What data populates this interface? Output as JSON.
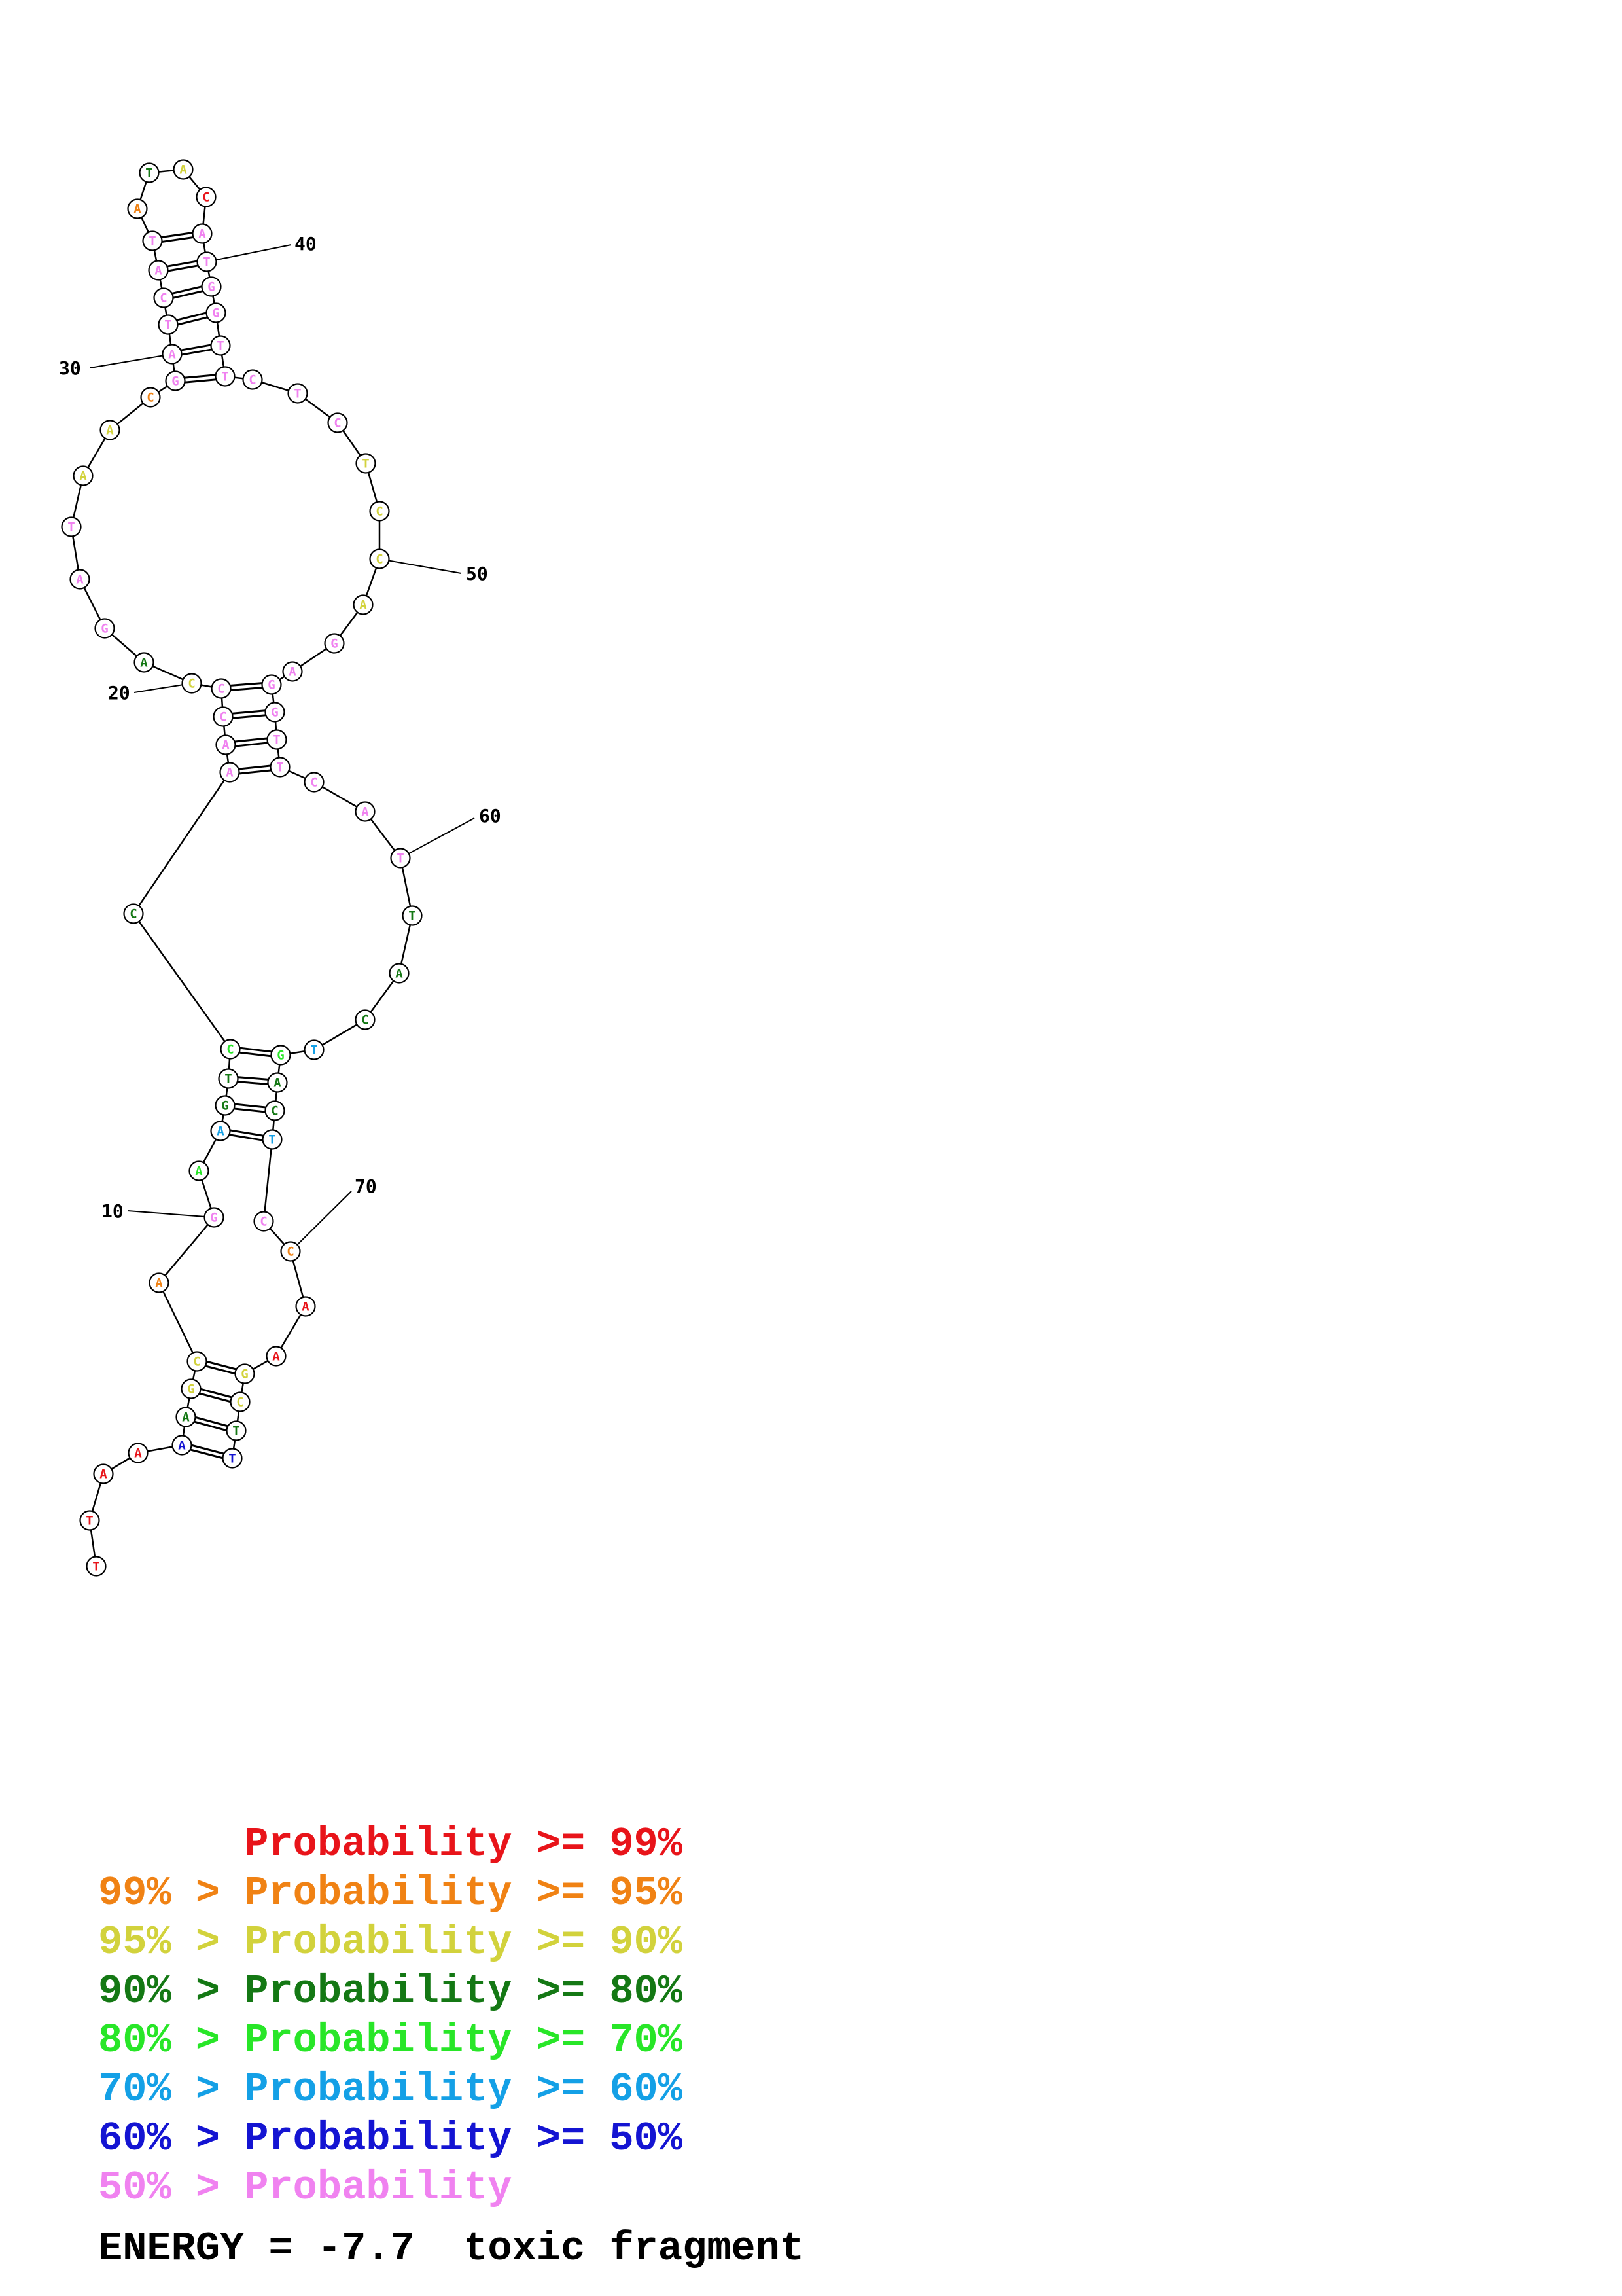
{
  "colors": {
    "c1": "#e8141a",
    "c2": "#f08214",
    "c3": "#d2d23c",
    "c4": "#147814",
    "c5": "#28e628",
    "c6": "#14a0e6",
    "c7": "#1414d2",
    "c8": "#f082f0",
    "black": "#000000",
    "node_fill": "#ffffff"
  },
  "diagram": {
    "sequence": [
      {
        "n": 1,
        "base": "T",
        "color": "c1"
      },
      {
        "n": 2,
        "base": "T",
        "color": "c1"
      },
      {
        "n": 3,
        "base": "A",
        "color": "c1"
      },
      {
        "n": 4,
        "base": "A",
        "color": "c1"
      },
      {
        "n": 5,
        "base": "A",
        "color": "c7"
      },
      {
        "n": 6,
        "base": "A",
        "color": "c4"
      },
      {
        "n": 7,
        "base": "G",
        "color": "c3"
      },
      {
        "n": 8,
        "base": "C",
        "color": "c3"
      },
      {
        "n": 9,
        "base": "A",
        "color": "c2"
      },
      {
        "n": 10,
        "base": "G",
        "color": "c8"
      },
      {
        "n": 11,
        "base": "A",
        "color": "c5"
      },
      {
        "n": 12,
        "base": "A",
        "color": "c6"
      },
      {
        "n": 13,
        "base": "G",
        "color": "c4"
      },
      {
        "n": 14,
        "base": "T",
        "color": "c4"
      },
      {
        "n": 15,
        "base": "C",
        "color": "c5"
      },
      {
        "n": 16,
        "base": "C",
        "color": "c4"
      },
      {
        "n": 17,
        "base": "A",
        "color": "c8"
      },
      {
        "n": 18,
        "base": "A",
        "color": "c8"
      },
      {
        "n": 19,
        "base": "C",
        "color": "c8"
      },
      {
        "n": 20,
        "base": "C",
        "color": "c8"
      },
      {
        "n": 21,
        "base": "C",
        "color": "c3"
      },
      {
        "n": 22,
        "base": "A",
        "color": "c4"
      },
      {
        "n": 23,
        "base": "G",
        "color": "c8"
      },
      {
        "n": 24,
        "base": "A",
        "color": "c8"
      },
      {
        "n": 25,
        "base": "T",
        "color": "c8"
      },
      {
        "n": 26,
        "base": "A",
        "color": "c3"
      },
      {
        "n": 27,
        "base": "A",
        "color": "c3"
      },
      {
        "n": 28,
        "base": "C",
        "color": "c2"
      },
      {
        "n": 29,
        "base": "G",
        "color": "c8"
      },
      {
        "n": 30,
        "base": "A",
        "color": "c8"
      },
      {
        "n": 31,
        "base": "T",
        "color": "c8"
      },
      {
        "n": 32,
        "base": "C",
        "color": "c8"
      },
      {
        "n": 33,
        "base": "A",
        "color": "c8"
      },
      {
        "n": 34,
        "base": "T",
        "color": "c8"
      },
      {
        "n": 35,
        "base": "A",
        "color": "c2"
      },
      {
        "n": 36,
        "base": "T",
        "color": "c4"
      },
      {
        "n": 37,
        "base": "A",
        "color": "c3"
      },
      {
        "n": 38,
        "base": "C",
        "color": "c1"
      },
      {
        "n": 39,
        "base": "A",
        "color": "c8"
      },
      {
        "n": 40,
        "base": "T",
        "color": "c8"
      },
      {
        "n": 41,
        "base": "G",
        "color": "c8"
      },
      {
        "n": 42,
        "base": "G",
        "color": "c8"
      },
      {
        "n": 43,
        "base": "T",
        "color": "c8"
      },
      {
        "n": 44,
        "base": "T",
        "color": "c8"
      },
      {
        "n": 45,
        "base": "C",
        "color": "c8"
      },
      {
        "n": 46,
        "base": "T",
        "color": "c8"
      },
      {
        "n": 47,
        "base": "C",
        "color": "c8"
      },
      {
        "n": 48,
        "base": "T",
        "color": "c3"
      },
      {
        "n": 49,
        "base": "C",
        "color": "c3"
      },
      {
        "n": 50,
        "base": "C",
        "color": "c3"
      },
      {
        "n": 51,
        "base": "A",
        "color": "c3"
      },
      {
        "n": 52,
        "base": "G",
        "color": "c8"
      },
      {
        "n": 53,
        "base": "A",
        "color": "c8"
      },
      {
        "n": 54,
        "base": "G",
        "color": "c8"
      },
      {
        "n": 55,
        "base": "G",
        "color": "c8"
      },
      {
        "n": 56,
        "base": "T",
        "color": "c8"
      },
      {
        "n": 57,
        "base": "T",
        "color": "c8"
      },
      {
        "n": 58,
        "base": "C",
        "color": "c8"
      },
      {
        "n": 59,
        "base": "A",
        "color": "c8"
      },
      {
        "n": 60,
        "base": "T",
        "color": "c8"
      },
      {
        "n": 61,
        "base": "T",
        "color": "c4"
      },
      {
        "n": 62,
        "base": "A",
        "color": "c4"
      },
      {
        "n": 63,
        "base": "C",
        "color": "c4"
      },
      {
        "n": 64,
        "base": "T",
        "color": "c6"
      },
      {
        "n": 65,
        "base": "G",
        "color": "c5"
      },
      {
        "n": 66,
        "base": "A",
        "color": "c4"
      },
      {
        "n": 67,
        "base": "C",
        "color": "c4"
      },
      {
        "n": 68,
        "base": "T",
        "color": "c6"
      },
      {
        "n": 69,
        "base": "C",
        "color": "c8"
      },
      {
        "n": 70,
        "base": "C",
        "color": "c2"
      },
      {
        "n": 71,
        "base": "A",
        "color": "c1"
      },
      {
        "n": 72,
        "base": "A",
        "color": "c1"
      },
      {
        "n": 73,
        "base": "G",
        "color": "c3"
      },
      {
        "n": 74,
        "base": "C",
        "color": "c3"
      },
      {
        "n": 75,
        "base": "T",
        "color": "c4"
      },
      {
        "n": 76,
        "base": "T",
        "color": "c7"
      }
    ],
    "pairs": [
      [
        5,
        76
      ],
      [
        6,
        75
      ],
      [
        7,
        74
      ],
      [
        8,
        73
      ],
      [
        12,
        68
      ],
      [
        13,
        67
      ],
      [
        14,
        66
      ],
      [
        15,
        65
      ],
      [
        17,
        57
      ],
      [
        18,
        56
      ],
      [
        19,
        55
      ],
      [
        20,
        54
      ],
      [
        29,
        44
      ],
      [
        30,
        43
      ],
      [
        31,
        42
      ],
      [
        32,
        41
      ],
      [
        33,
        40
      ],
      [
        34,
        39
      ]
    ],
    "index_labels": [
      "10",
      "20",
      "30",
      "40",
      "50",
      "60",
      "70"
    ]
  },
  "legend": {
    "lines": [
      {
        "prefix": "",
        "label": "Probability",
        "suffix": ">= 99%",
        "color": "c1"
      },
      {
        "prefix": "99%",
        "label": "Probability",
        "suffix": ">= 95%",
        "color": "c2"
      },
      {
        "prefix": "95%",
        "label": "Probability",
        "suffix": ">= 90%",
        "color": "c3"
      },
      {
        "prefix": "90%",
        "label": "Probability",
        "suffix": ">= 80%",
        "color": "c4"
      },
      {
        "prefix": "80%",
        "label": "Probability",
        "suffix": ">= 70%",
        "color": "c5"
      },
      {
        "prefix": "70%",
        "label": "Probability",
        "suffix": ">= 60%",
        "color": "c6"
      },
      {
        "prefix": "60%",
        "label": "Probability",
        "suffix": ">= 50%",
        "color": "c7"
      },
      {
        "prefix": "50%",
        "label": "Probability",
        "suffix": "",
        "color": "c8"
      }
    ],
    "separator": ">"
  },
  "energy": {
    "label": "ENERGY",
    "equals": "=",
    "value": "-7.7",
    "name": "toxic fragment"
  }
}
